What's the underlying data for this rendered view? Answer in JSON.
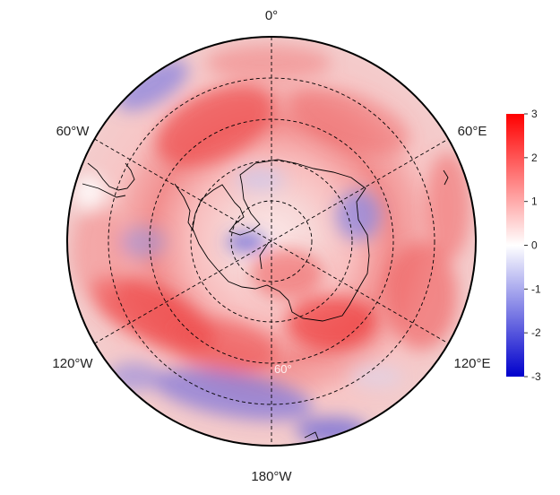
{
  "map": {
    "projection": "south-polar-stereographic",
    "longitude_labels": {
      "top": "0°",
      "upper_left": "60°W",
      "upper_right": "60°E",
      "lower_left": "120°W",
      "lower_right": "120°E",
      "bottom": "180°W"
    },
    "latitude_label": "60°",
    "grid": "dashed",
    "coastline_color": "#000000"
  },
  "colorbar": {
    "min": -3,
    "max": 3,
    "ticks": [
      "3",
      "2",
      "1",
      "0",
      "-1",
      "-2",
      "-3"
    ],
    "colors": {
      "high": "#ff0000",
      "mid": "#ffffff",
      "low": "#0000cc"
    }
  }
}
